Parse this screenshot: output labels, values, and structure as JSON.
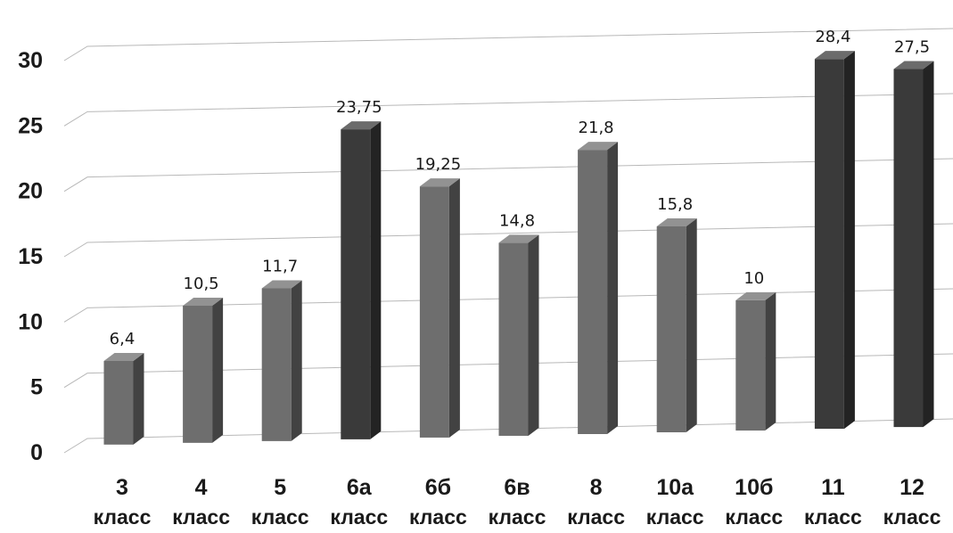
{
  "chart_data": {
    "type": "bar",
    "categories": [
      [
        "3",
        "класс"
      ],
      [
        "4",
        "класс"
      ],
      [
        "5",
        "класс"
      ],
      [
        "6а",
        "класс"
      ],
      [
        "6б",
        "класс"
      ],
      [
        "6в",
        "класс"
      ],
      [
        "8",
        "класс"
      ],
      [
        "10а",
        "класс"
      ],
      [
        "10б",
        "класс"
      ],
      [
        "11",
        "класс"
      ],
      [
        "12",
        "класс"
      ]
    ],
    "values": [
      6.4,
      10.5,
      11.7,
      23.75,
      19.25,
      14.8,
      21.8,
      15.8,
      10,
      28.4,
      27.5
    ],
    "data_labels": [
      "6,4",
      "10,5",
      "11,7",
      "23,75",
      "19,25",
      "14,8",
      "21,8",
      "15,8",
      "10",
      "28,4",
      "27,5"
    ],
    "y_ticks": [
      "0",
      "5",
      "10",
      "15",
      "20",
      "25",
      "30"
    ],
    "ylim": [
      0,
      30
    ],
    "grid": true,
    "style": "3d-column",
    "colors": {
      "light_bar": "#6e6e6e",
      "dark_bar": "#3a3a3a"
    },
    "bar_shades": [
      "light",
      "light",
      "light",
      "dark",
      "light",
      "light",
      "light",
      "light",
      "light",
      "dark",
      "dark"
    ]
  }
}
